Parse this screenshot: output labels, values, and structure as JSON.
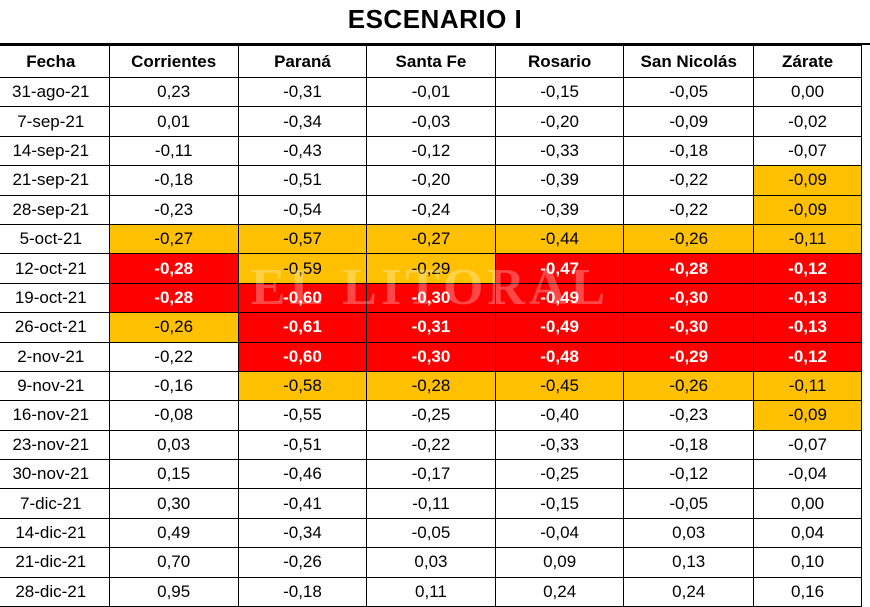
{
  "title": "ESCENARIO I",
  "watermark": "EL LITORAL",
  "colors": {
    "warning": "#ffc000",
    "alert": "#ff0000"
  },
  "columns": [
    "Fecha",
    "Corrientes",
    "Paraná",
    "Santa Fe",
    "Rosario",
    "San Nicolás",
    "Zárate"
  ],
  "rows": [
    {
      "date": "31-ago-21",
      "values": [
        "0,23",
        "-0,31",
        "-0,01",
        "-0,15",
        "-0,05",
        "0,00"
      ],
      "levels": [
        "",
        "",
        "",
        "",
        "",
        ""
      ]
    },
    {
      "date": "7-sep-21",
      "values": [
        "0,01",
        "-0,34",
        "-0,03",
        "-0,20",
        "-0,09",
        "-0,02"
      ],
      "levels": [
        "",
        "",
        "",
        "",
        "",
        ""
      ]
    },
    {
      "date": "14-sep-21",
      "values": [
        "-0,11",
        "-0,43",
        "-0,12",
        "-0,33",
        "-0,18",
        "-0,07"
      ],
      "levels": [
        "",
        "",
        "",
        "",
        "",
        ""
      ]
    },
    {
      "date": "21-sep-21",
      "values": [
        "-0,18",
        "-0,51",
        "-0,20",
        "-0,39",
        "-0,22",
        "-0,09"
      ],
      "levels": [
        "",
        "",
        "",
        "",
        "",
        "o"
      ]
    },
    {
      "date": "28-sep-21",
      "values": [
        "-0,23",
        "-0,54",
        "-0,24",
        "-0,39",
        "-0,22",
        "-0,09"
      ],
      "levels": [
        "",
        "",
        "",
        "",
        "",
        "o"
      ]
    },
    {
      "date": "5-oct-21",
      "values": [
        "-0,27",
        "-0,57",
        "-0,27",
        "-0,44",
        "-0,26",
        "-0,11"
      ],
      "levels": [
        "o",
        "o",
        "o",
        "o",
        "o",
        "o"
      ]
    },
    {
      "date": "12-oct-21",
      "values": [
        "-0,28",
        "-0,59",
        "-0,29",
        "-0,47",
        "-0,28",
        "-0,12"
      ],
      "levels": [
        "r",
        "o",
        "o",
        "r",
        "r",
        "r"
      ]
    },
    {
      "date": "19-oct-21",
      "values": [
        "-0,28",
        "-0,60",
        "-0,30",
        "-0,49",
        "-0,30",
        "-0,13"
      ],
      "levels": [
        "r",
        "r",
        "r",
        "r",
        "r",
        "r"
      ]
    },
    {
      "date": "26-oct-21",
      "values": [
        "-0,26",
        "-0,61",
        "-0,31",
        "-0,49",
        "-0,30",
        "-0,13"
      ],
      "levels": [
        "o",
        "r",
        "r",
        "r",
        "r",
        "r"
      ]
    },
    {
      "date": "2-nov-21",
      "values": [
        "-0,22",
        "-0,60",
        "-0,30",
        "-0,48",
        "-0,29",
        "-0,12"
      ],
      "levels": [
        "",
        "r",
        "r",
        "r",
        "r",
        "r"
      ]
    },
    {
      "date": "9-nov-21",
      "values": [
        "-0,16",
        "-0,58",
        "-0,28",
        "-0,45",
        "-0,26",
        "-0,11"
      ],
      "levels": [
        "",
        "o",
        "o",
        "o",
        "o",
        "o"
      ]
    },
    {
      "date": "16-nov-21",
      "values": [
        "-0,08",
        "-0,55",
        "-0,25",
        "-0,40",
        "-0,23",
        "-0,09"
      ],
      "levels": [
        "",
        "",
        "",
        "",
        "",
        "o"
      ]
    },
    {
      "date": "23-nov-21",
      "values": [
        "0,03",
        "-0,51",
        "-0,22",
        "-0,33",
        "-0,18",
        "-0,07"
      ],
      "levels": [
        "",
        "",
        "",
        "",
        "",
        ""
      ]
    },
    {
      "date": "30-nov-21",
      "values": [
        "0,15",
        "-0,46",
        "-0,17",
        "-0,25",
        "-0,12",
        "-0,04"
      ],
      "levels": [
        "",
        "",
        "",
        "",
        "",
        ""
      ]
    },
    {
      "date": "7-dic-21",
      "values": [
        "0,30",
        "-0,41",
        "-0,11",
        "-0,15",
        "-0,05",
        "0,00"
      ],
      "levels": [
        "",
        "",
        "",
        "",
        "",
        ""
      ]
    },
    {
      "date": "14-dic-21",
      "values": [
        "0,49",
        "-0,34",
        "-0,05",
        "-0,04",
        "0,03",
        "0,04"
      ],
      "levels": [
        "",
        "",
        "",
        "",
        "",
        ""
      ]
    },
    {
      "date": "21-dic-21",
      "values": [
        "0,70",
        "-0,26",
        "0,03",
        "0,09",
        "0,13",
        "0,10"
      ],
      "levels": [
        "",
        "",
        "",
        "",
        "",
        ""
      ]
    },
    {
      "date": "28-dic-21",
      "values": [
        "0,95",
        "-0,18",
        "0,11",
        "0,24",
        "0,24",
        "0,16"
      ],
      "levels": [
        "",
        "",
        "",
        "",
        "",
        ""
      ]
    }
  ]
}
